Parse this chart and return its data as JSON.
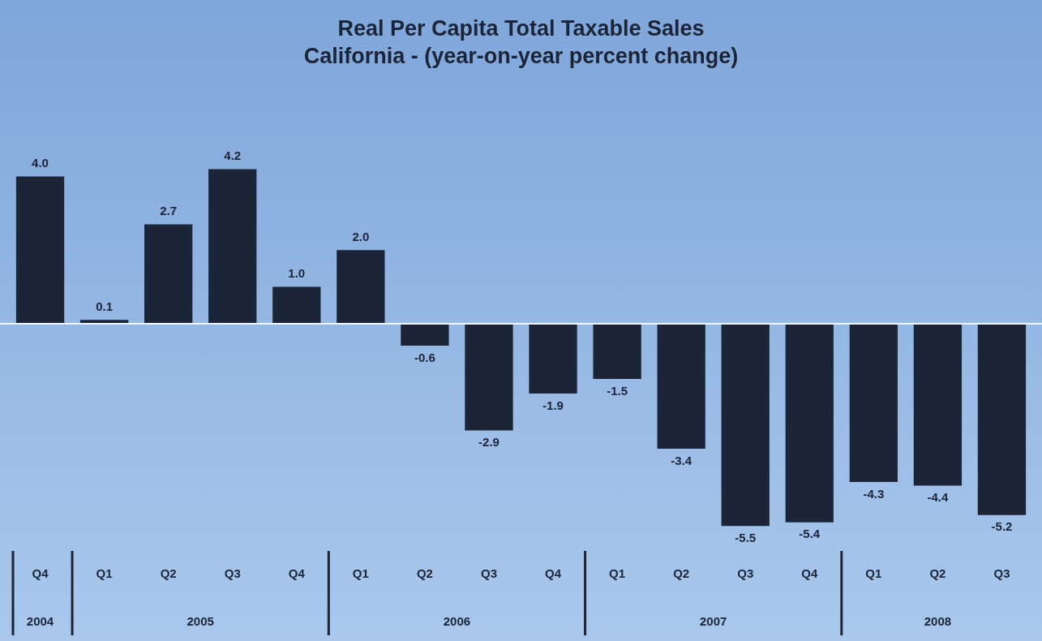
{
  "chart_data": {
    "type": "bar",
    "title": "Real Per Capita Total Taxable Sales",
    "subtitle": "California - (year-on-year percent change)",
    "categories": [
      "Q4",
      "Q1",
      "Q2",
      "Q3",
      "Q4",
      "Q1",
      "Q2",
      "Q3",
      "Q4",
      "Q1",
      "Q2",
      "Q3",
      "Q4",
      "Q1",
      "Q2",
      "Q3"
    ],
    "values": [
      4.0,
      0.1,
      2.7,
      4.2,
      1.0,
      2.0,
      -0.6,
      -2.9,
      -1.9,
      -1.5,
      -3.4,
      -5.5,
      -5.4,
      -4.3,
      -4.4,
      -5.2
    ],
    "value_labels": [
      "4.0",
      "0.1",
      "2.7",
      "4.2",
      "1.0",
      "2.0",
      "-0.6",
      "-2.9",
      "-1.9",
      "-1.5",
      "-3.4",
      "-5.5",
      "-5.4",
      "-4.3",
      "-4.4",
      "-5.2"
    ],
    "color": "#1c2538",
    "grid": false,
    "legend": false,
    "annotations": [
      "2004",
      "2005",
      "2006",
      "2007",
      "2008"
    ]
  }
}
